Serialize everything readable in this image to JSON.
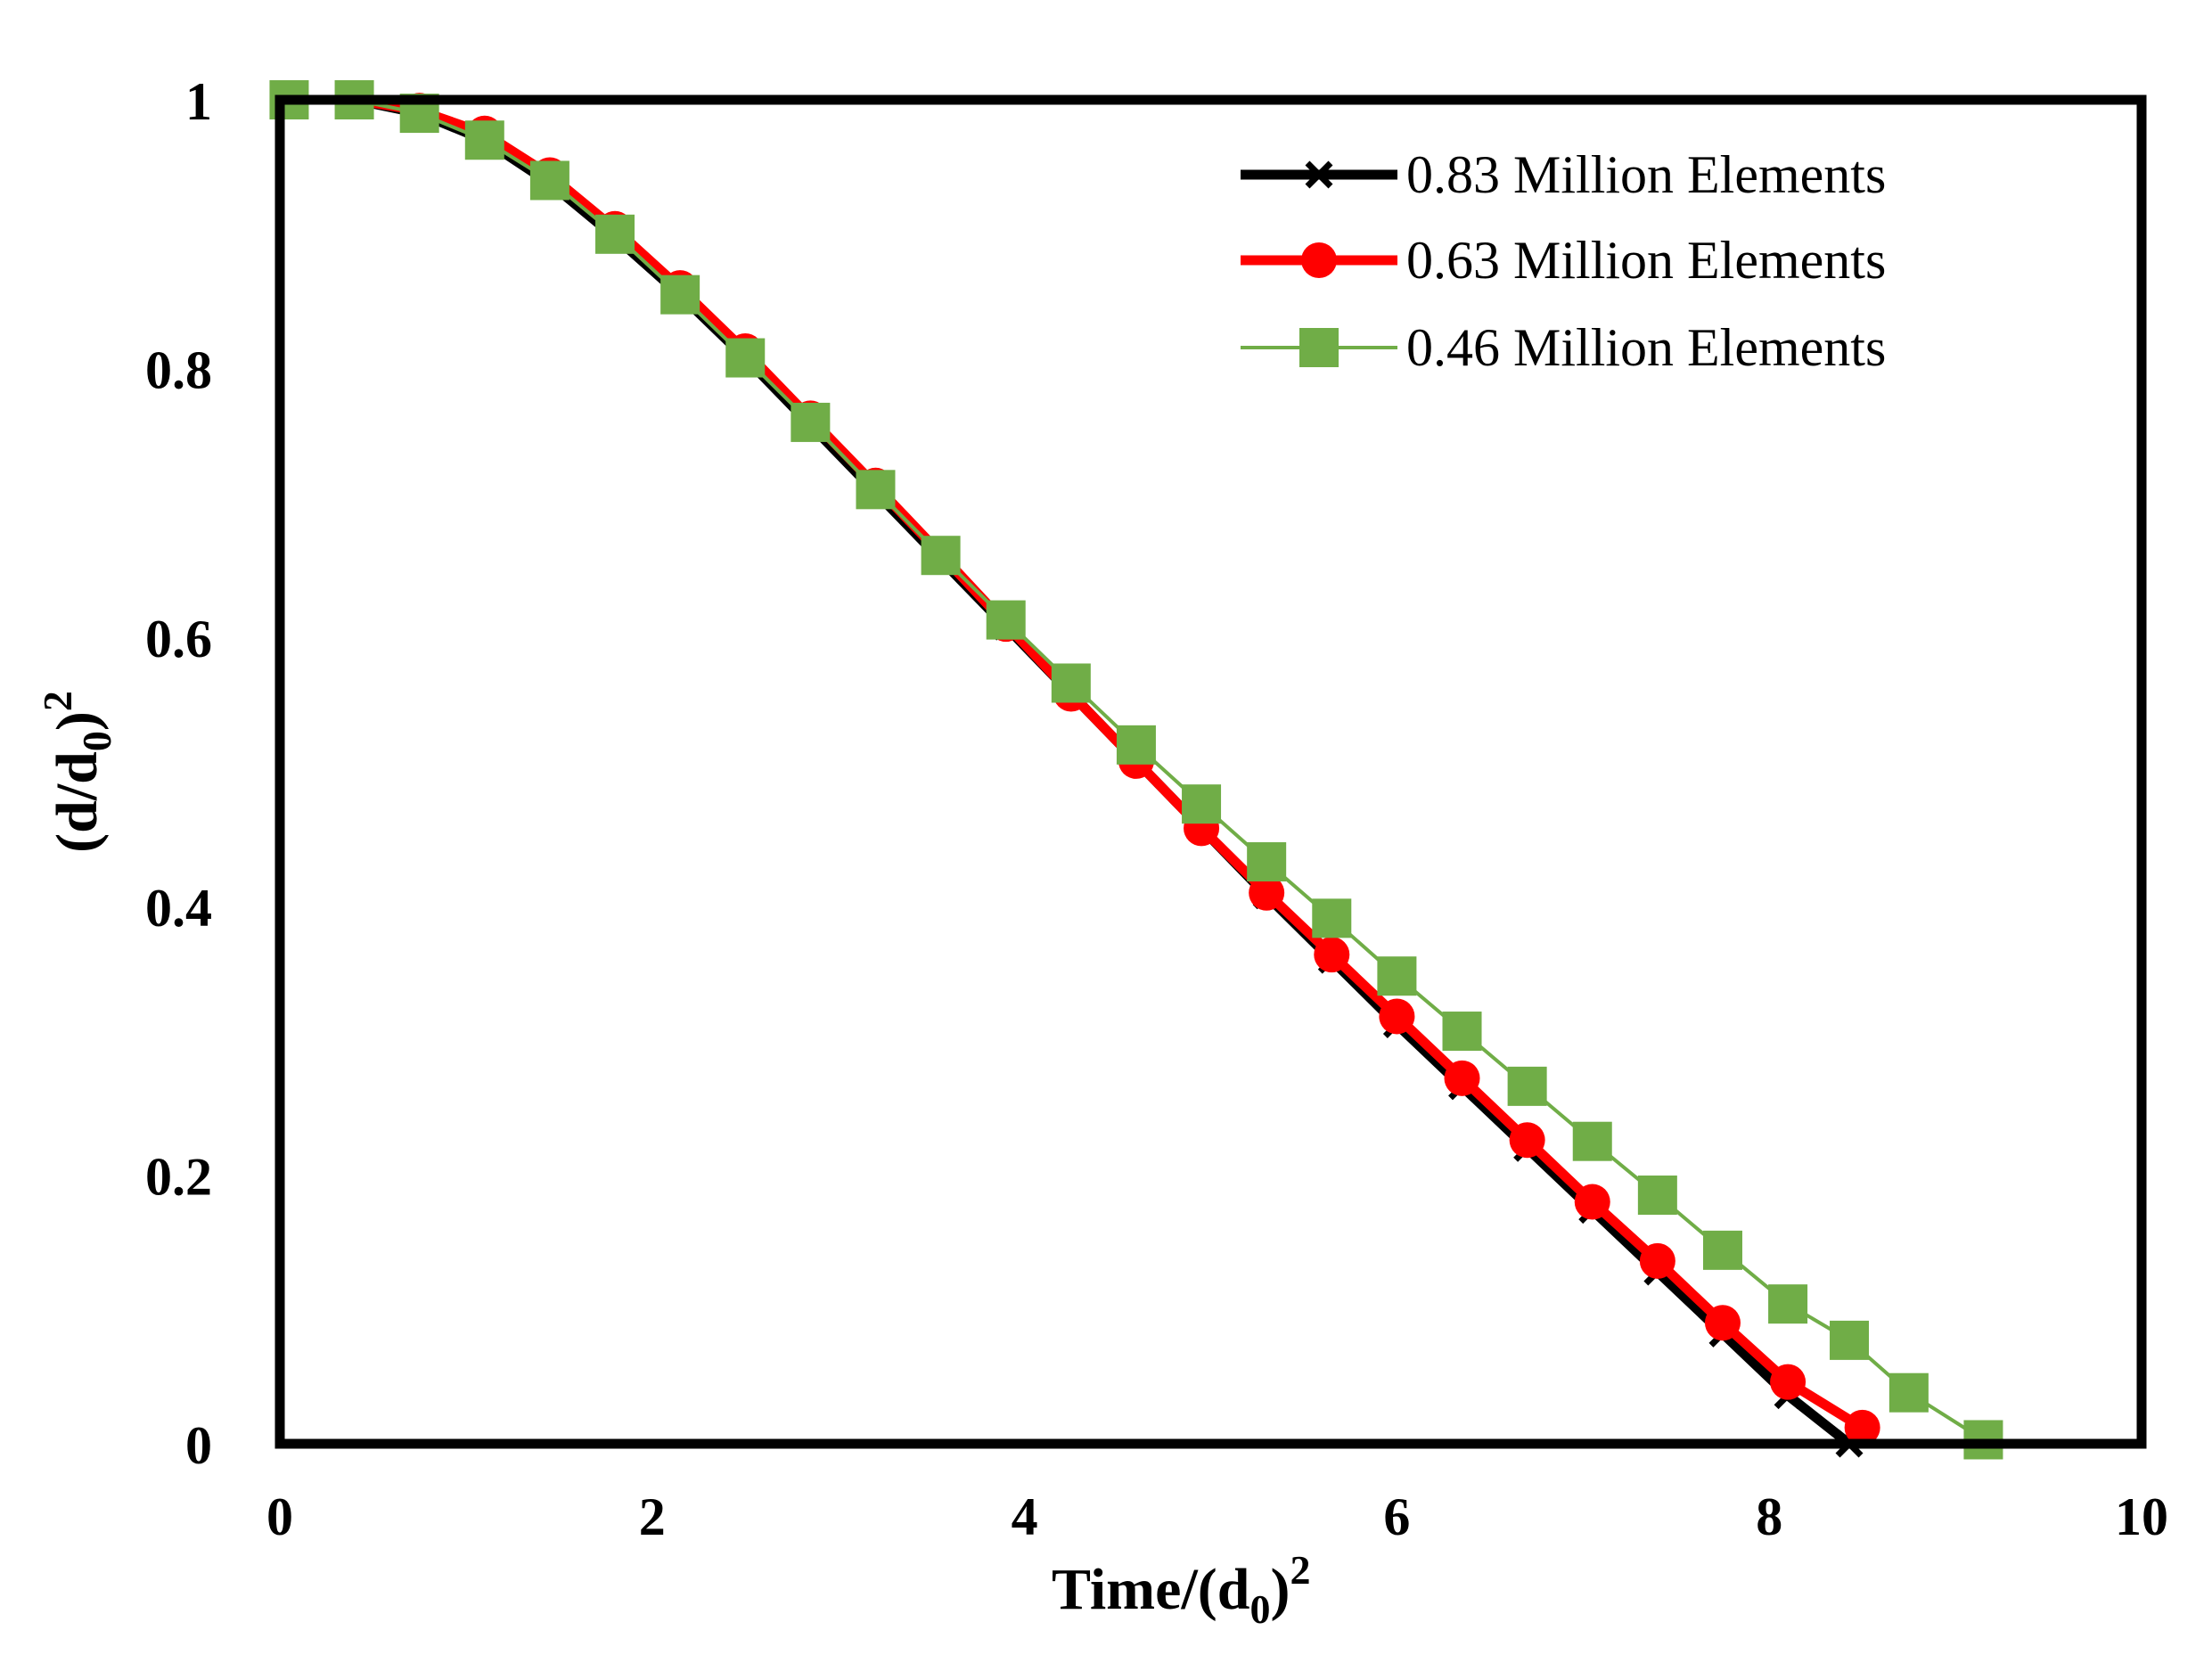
{
  "chart_data": {
    "type": "line",
    "title": "",
    "xlabel": "Time/(d0)^2",
    "ylabel": "(d/d0)^2",
    "xlabel_parts": {
      "base": "Time/(d",
      "sub": "0",
      "close": ")",
      "sup": "2"
    },
    "ylabel_parts": {
      "open": "(d/d",
      "sub": "0",
      "close": ")",
      "sup": "2"
    },
    "xlim": [
      0,
      10
    ],
    "ylim": [
      0,
      1
    ],
    "xticks": [
      0,
      2,
      4,
      6,
      8,
      10
    ],
    "xtick_labels": [
      "0",
      "2",
      "4",
      "6",
      "8",
      "10"
    ],
    "yticks": [
      0,
      0.2,
      0.4,
      0.6,
      0.8,
      1
    ],
    "ytick_labels": [
      "0",
      "0.2",
      "0.4",
      "0.6",
      "0.8",
      "1"
    ],
    "grid": false,
    "legend_position": "top-right",
    "series": [
      {
        "name": "0.83 Million Elements",
        "color": "#000000",
        "marker": "x",
        "x": [
          0.05,
          0.4,
          0.75,
          1.1,
          1.45,
          1.8,
          2.15,
          2.5,
          2.85,
          3.2,
          3.55,
          3.9,
          4.25,
          4.6,
          4.95,
          5.3,
          5.65,
          6.0,
          6.35,
          6.7,
          7.05,
          7.4,
          7.75,
          8.1,
          8.43
        ],
        "y": [
          1.0,
          1.0,
          0.99,
          0.97,
          0.938,
          0.898,
          0.855,
          0.808,
          0.758,
          0.708,
          0.658,
          0.608,
          0.558,
          0.508,
          0.458,
          0.408,
          0.36,
          0.312,
          0.266,
          0.22,
          0.174,
          0.128,
          0.082,
          0.036,
          0.0
        ]
      },
      {
        "name": "0.63 Million Elements",
        "color": "#ff0000",
        "marker": "circle",
        "x": [
          0.05,
          0.4,
          0.75,
          1.1,
          1.45,
          1.8,
          2.15,
          2.5,
          2.85,
          3.2,
          3.55,
          3.9,
          4.25,
          4.6,
          4.95,
          5.3,
          5.65,
          6.0,
          6.35,
          6.7,
          7.05,
          7.4,
          7.75,
          8.1,
          8.5
        ],
        "y": [
          1.0,
          1.0,
          0.992,
          0.975,
          0.944,
          0.904,
          0.86,
          0.813,
          0.763,
          0.713,
          0.662,
          0.61,
          0.558,
          0.508,
          0.458,
          0.41,
          0.364,
          0.318,
          0.272,
          0.226,
          0.18,
          0.136,
          0.09,
          0.046,
          0.012
        ]
      },
      {
        "name": "0.46 Million Elements",
        "color": "#70ad47",
        "marker": "square",
        "x": [
          0.05,
          0.4,
          0.75,
          1.1,
          1.45,
          1.8,
          2.15,
          2.5,
          2.85,
          3.2,
          3.55,
          3.9,
          4.25,
          4.6,
          4.95,
          5.3,
          5.65,
          6.0,
          6.35,
          6.7,
          7.05,
          7.4,
          7.75,
          8.1,
          8.43,
          8.75,
          9.15
        ],
        "y": [
          1.0,
          1.0,
          0.99,
          0.97,
          0.94,
          0.9,
          0.855,
          0.808,
          0.76,
          0.71,
          0.661,
          0.613,
          0.566,
          0.52,
          0.476,
          0.433,
          0.391,
          0.348,
          0.307,
          0.266,
          0.225,
          0.185,
          0.144,
          0.104,
          0.077,
          0.038,
          0.003
        ]
      }
    ]
  }
}
